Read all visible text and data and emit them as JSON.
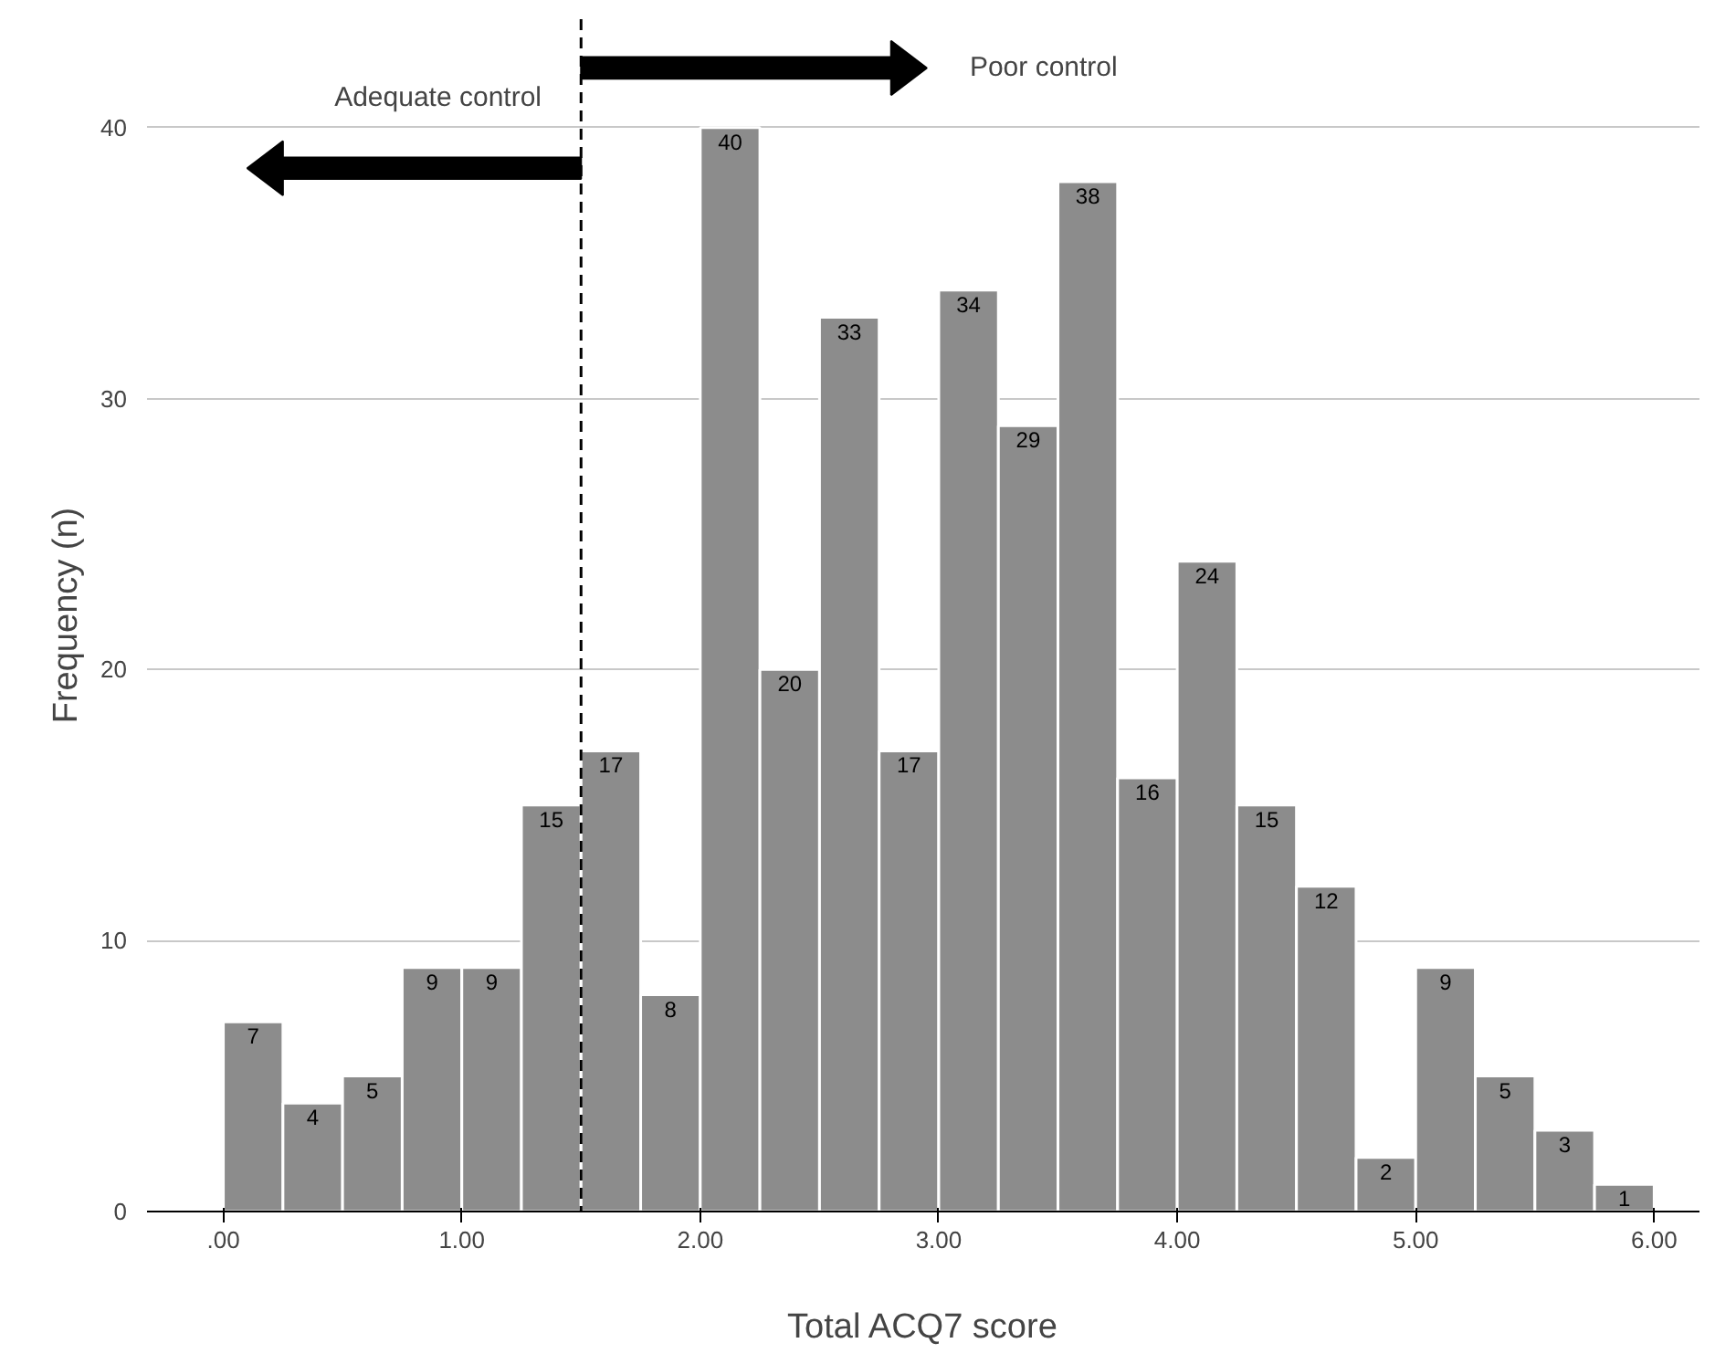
{
  "chart_data": {
    "type": "histogram",
    "bins": [
      0,
      0.25,
      0.5,
      0.75,
      1,
      1.25,
      1.5,
      1.75,
      2,
      2.25,
      2.5,
      2.75,
      3,
      3.25,
      3.5,
      3.75,
      4,
      4.25,
      4.5,
      4.75,
      5,
      5.25,
      5.5,
      5.75,
      6
    ],
    "values": [
      7,
      4,
      5,
      9,
      9,
      15,
      17,
      8,
      40,
      20,
      33,
      17,
      34,
      29,
      38,
      16,
      24,
      15,
      12,
      2,
      9,
      5,
      3,
      1
    ],
    "color": "#8c8c8c",
    "data_labels": true,
    "xlabel": "Total ACQ7 score",
    "ylabel": "Frequency (n)",
    "xlim": [
      -0.32,
      6.19
    ],
    "ylim": [
      0,
      44
    ],
    "xticks": [
      {
        "value": 0,
        "label": ".00"
      },
      {
        "value": 1,
        "label": "1.00"
      },
      {
        "value": 2,
        "label": "2.00"
      },
      {
        "value": 3,
        "label": "3.00"
      },
      {
        "value": 4,
        "label": "4.00"
      },
      {
        "value": 5,
        "label": "5.00"
      },
      {
        "value": 6,
        "label": "6.00"
      }
    ],
    "yticks": [
      0,
      10,
      20,
      30,
      40
    ],
    "grid": "y",
    "ref_lines": [
      {
        "axis": "x",
        "value": 1.5,
        "line_style": "dashed",
        "color": "#000000"
      }
    ],
    "annotations": [
      "Adequate control",
      "Poor control"
    ]
  }
}
